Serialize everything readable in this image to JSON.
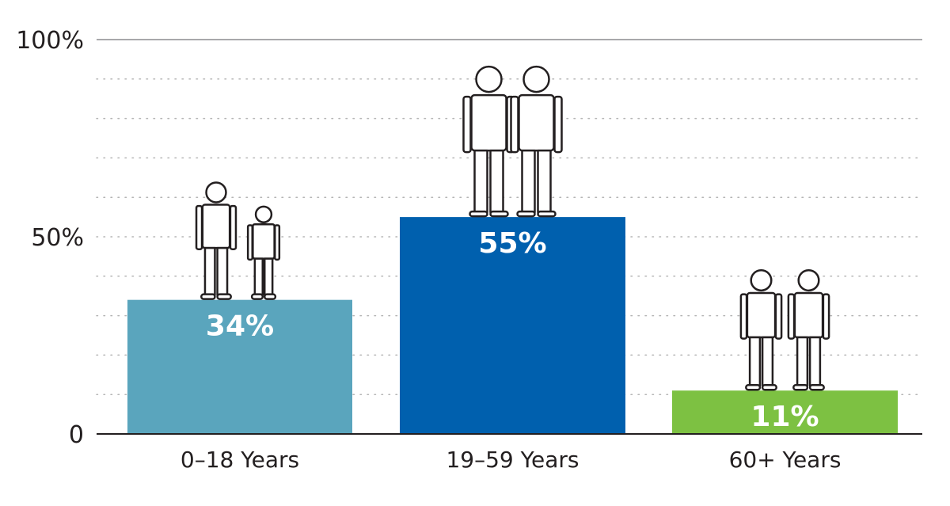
{
  "chart_data": {
    "type": "bar",
    "categories": [
      "0–18 Years",
      "19–59 Years",
      "60+ Years"
    ],
    "values": [
      34,
      55,
      11
    ],
    "data_labels": [
      "34%",
      "55%",
      "11%"
    ],
    "colors": [
      "#5aa5bd",
      "#0060ae",
      "#7dc142"
    ],
    "ylim": [
      0,
      100
    ],
    "yticks": [
      {
        "value": 0,
        "label": "0"
      },
      {
        "value": 50,
        "label": "50%"
      },
      {
        "value": 100,
        "label": "100%"
      }
    ],
    "minor_grid_step": 10,
    "grid": "dotted",
    "icons": [
      "girl-and-boy-icon",
      "man-and-woman-icon",
      "elderly-couple-icon"
    ]
  }
}
